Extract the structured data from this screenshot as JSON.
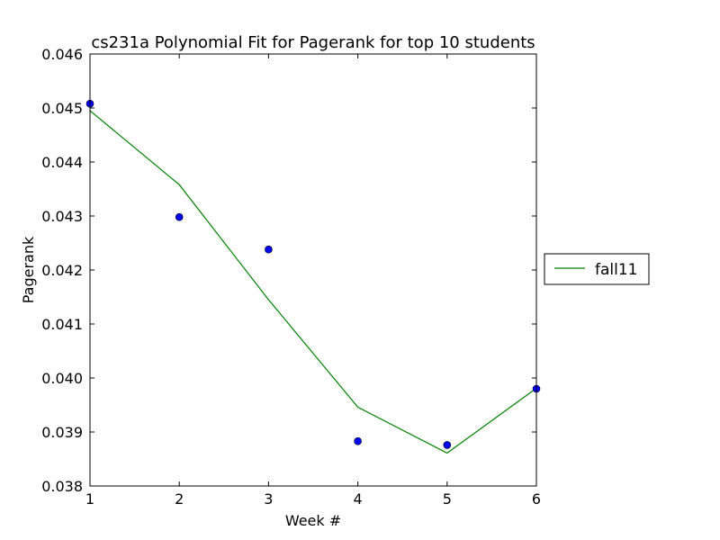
{
  "chart_data": {
    "type": "line",
    "title": "cs231a Polynomial Fit for Pagerank for top 10 students",
    "xlabel": "Week #",
    "ylabel": "Pagerank",
    "xlim": [
      1,
      6
    ],
    "ylim": [
      0.038,
      0.046
    ],
    "x_ticks": [
      "1",
      "2",
      "3",
      "4",
      "5",
      "6"
    ],
    "y_ticks": [
      "0.038",
      "0.039",
      "0.040",
      "0.041",
      "0.042",
      "0.043",
      "0.044",
      "0.045",
      "0.046"
    ],
    "grid": false,
    "legend_position": "right, outside plot",
    "series": [
      {
        "name": "fall11",
        "kind": "line",
        "color": "#008000",
        "x": [
          1,
          2,
          3,
          4,
          5,
          6
        ],
        "y": [
          0.04495,
          0.04358,
          0.04145,
          0.03946,
          0.03861,
          0.03981
        ]
      },
      {
        "kind": "scatter",
        "color": "#0000ff",
        "x": [
          1,
          2,
          3,
          4,
          5,
          6
        ],
        "y": [
          0.04508,
          0.04298,
          0.04238,
          0.03883,
          0.03876,
          0.0398
        ]
      }
    ]
  }
}
